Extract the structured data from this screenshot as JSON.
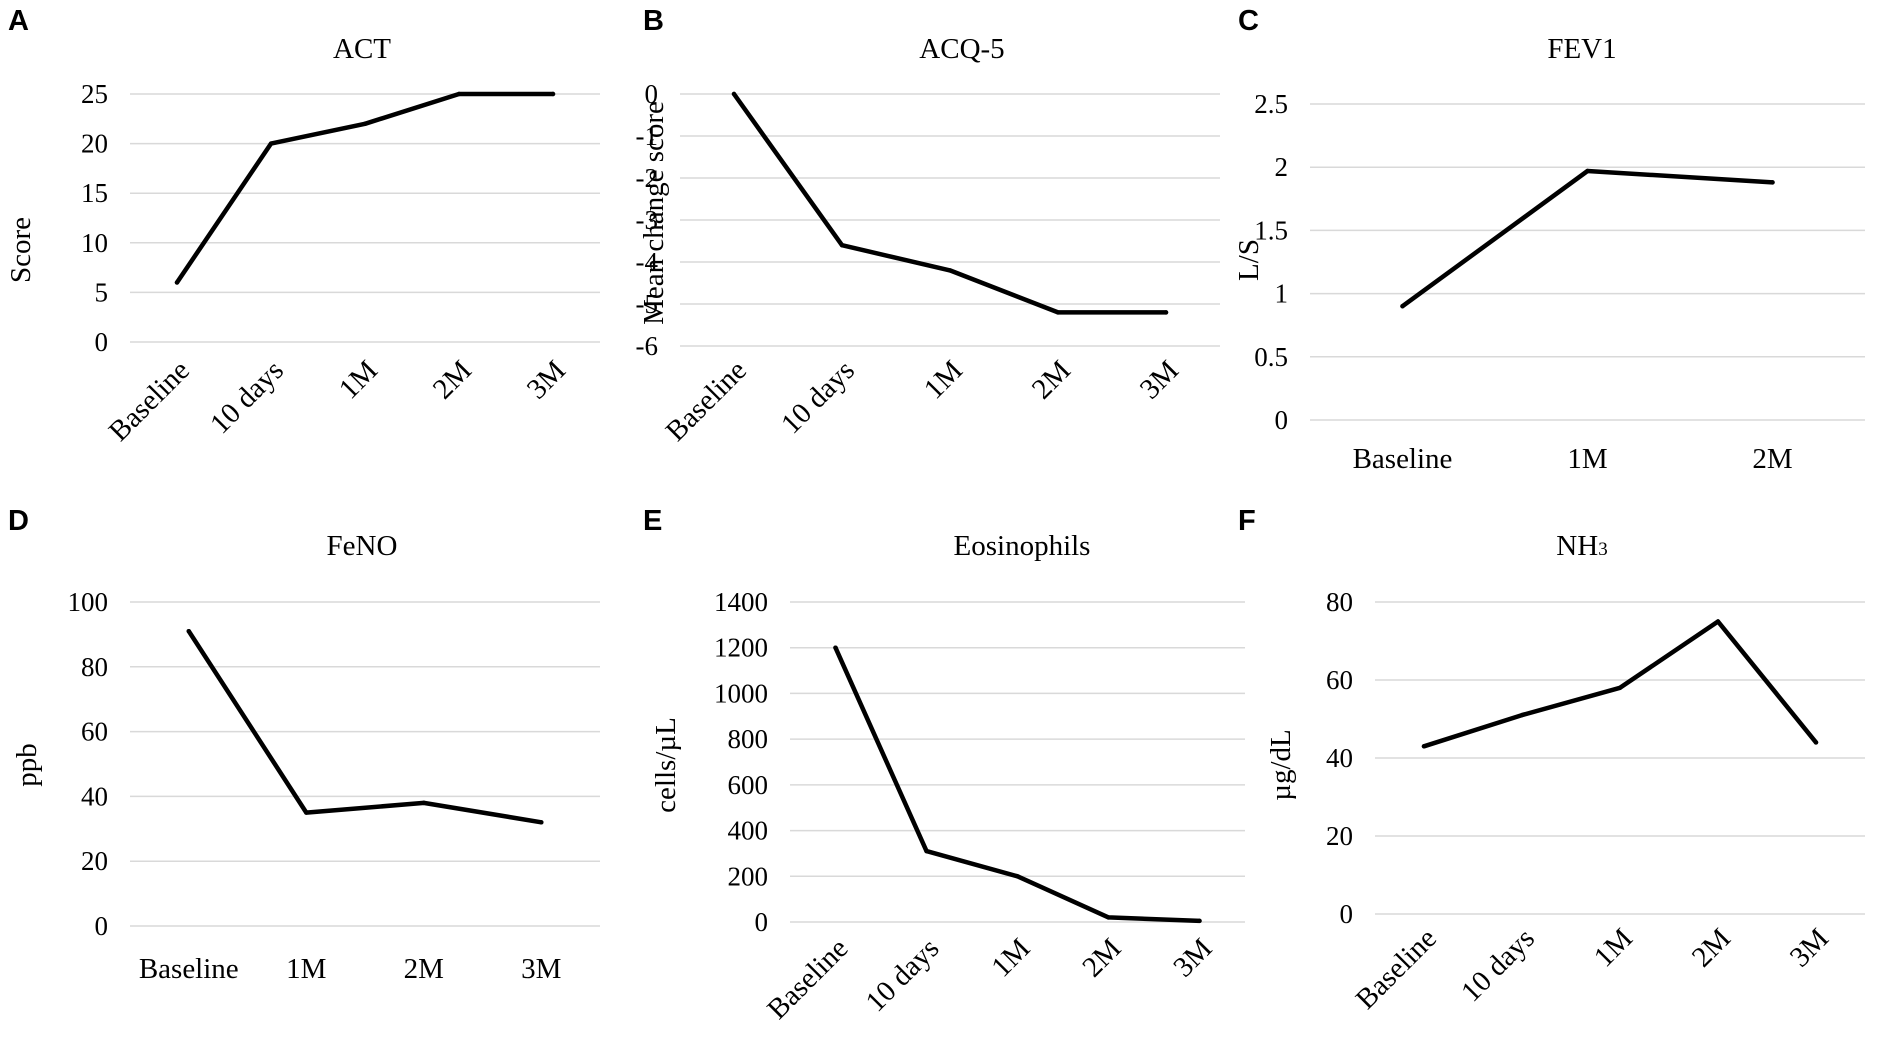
{
  "colors": {
    "line": "#000000",
    "grid": "#d9d9d9",
    "background": "#ffffff",
    "muted_label": "#7f7f7f"
  },
  "chart_data": [
    {
      "letter": "A",
      "type": "line",
      "title": "ACT",
      "ylabel": "Score",
      "xlabel": "",
      "categories": [
        "Baseline",
        "10 days",
        "1M",
        "2M",
        "3M"
      ],
      "values": [
        6,
        20,
        22,
        25,
        25
      ],
      "ylim": [
        0,
        25
      ],
      "yticks": [
        0,
        5,
        10,
        15,
        20,
        25
      ],
      "ytick_labels": [
        "0",
        "5",
        "10",
        "15",
        "20",
        "25"
      ],
      "grid": true
    },
    {
      "letter": "B",
      "type": "line",
      "title": "ACQ-5",
      "ylabel": "Mean change score",
      "xlabel": "",
      "categories": [
        "Baseline",
        "10 days",
        "1M",
        "2M",
        "3M"
      ],
      "values": [
        0,
        -3.6,
        -4.2,
        -5.2,
        -5.2
      ],
      "ylim": [
        -6,
        0
      ],
      "yticks": [
        0,
        -1,
        -2,
        -3,
        -4,
        -5,
        -6
      ],
      "ytick_labels": [
        "0",
        "-1",
        "-2",
        "-3",
        "-4",
        "-5",
        "-6"
      ],
      "grid": true
    },
    {
      "letter": "C",
      "type": "line",
      "title": "FEV1",
      "ylabel": "L/S",
      "xlabel": "",
      "categories": [
        "Baseline",
        "1M",
        "2M"
      ],
      "values": [
        0.9,
        1.97,
        1.88
      ],
      "ylim": [
        0,
        2.5
      ],
      "yticks": [
        0,
        0.5,
        1,
        1.5,
        2,
        2.5
      ],
      "ytick_labels": [
        "0",
        "0.5",
        "1",
        "1.5",
        "2",
        "2.5"
      ],
      "grid": true
    },
    {
      "letter": "D",
      "type": "line",
      "title": "FeNO",
      "ylabel": "ppb",
      "xlabel": "",
      "categories": [
        "Baseline",
        "1M",
        "2M",
        "3M"
      ],
      "values": [
        91,
        35,
        38,
        32
      ],
      "ylim": [
        0,
        100
      ],
      "yticks": [
        0,
        20,
        40,
        60,
        80,
        100
      ],
      "ytick_labels": [
        "0",
        "20",
        "40",
        "60",
        "80",
        "100"
      ],
      "grid": true
    },
    {
      "letter": "E",
      "type": "line",
      "title": "Eosinophils",
      "ylabel": "cells/µL",
      "xlabel": "",
      "categories": [
        "Baseline",
        "10 days",
        "1M",
        "2M",
        "3M"
      ],
      "values": [
        1200,
        310,
        200,
        20,
        5
      ],
      "ylim": [
        0,
        1400
      ],
      "yticks": [
        0,
        200,
        400,
        600,
        800,
        1000,
        1200,
        1400
      ],
      "ytick_labels": [
        "0",
        "200",
        "400",
        "600",
        "800",
        "1000",
        "1200",
        "1400"
      ],
      "grid": true
    },
    {
      "letter": "F",
      "type": "line",
      "title": "NH3",
      "ylabel": "µg/dL",
      "xlabel": "",
      "categories": [
        "Baseline",
        "10 days",
        "1M",
        "2M",
        "3M"
      ],
      "values": [
        43,
        51,
        58,
        75,
        44
      ],
      "ylim": [
        0,
        80
      ],
      "yticks": [
        0,
        20,
        40,
        60,
        80
      ],
      "ytick_labels": [
        "0",
        "20",
        "40",
        "60",
        "80"
      ],
      "grid": true
    }
  ]
}
